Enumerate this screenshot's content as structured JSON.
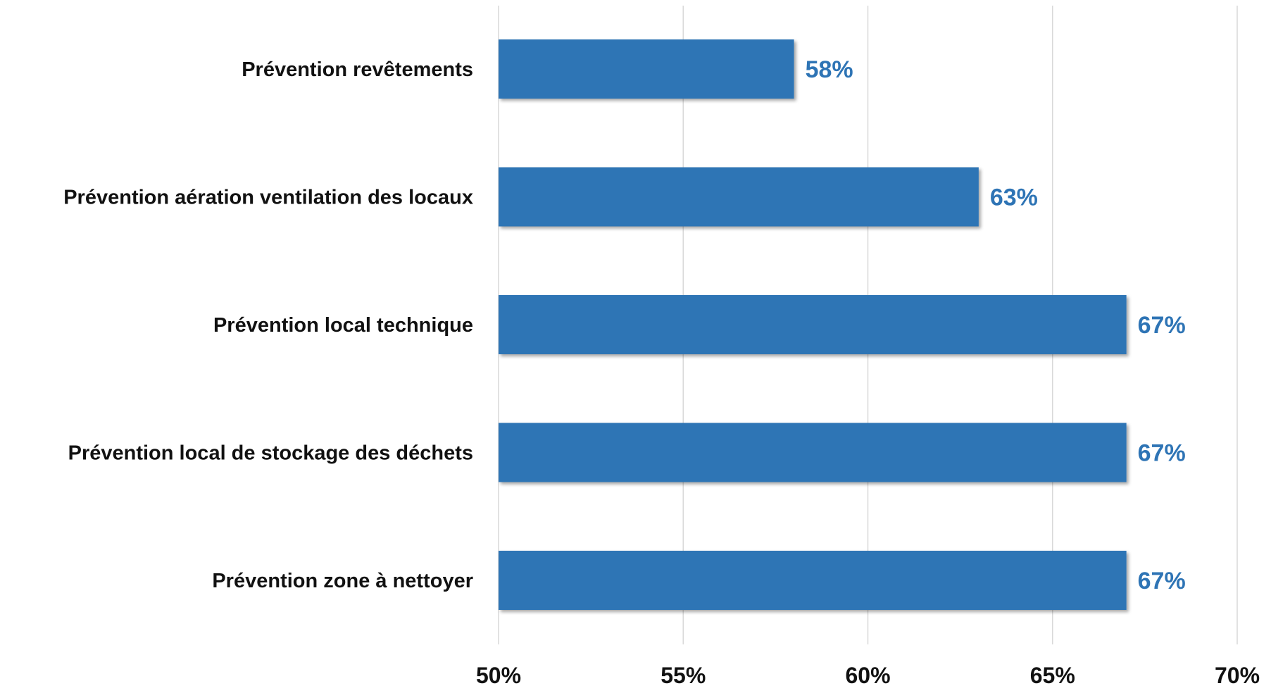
{
  "chart_data": {
    "type": "bar",
    "orientation": "horizontal",
    "categories": [
      "Prévention revêtements",
      "Prévention aération ventilation des locaux",
      "Prévention local technique",
      "Prévention local de stockage des déchets",
      "Prévention zone à nettoyer"
    ],
    "values": [
      58,
      63,
      67,
      67,
      67
    ],
    "value_labels": [
      "58%",
      "63%",
      "67%",
      "67%",
      "67%"
    ],
    "x_ticks": [
      50,
      55,
      60,
      65,
      70
    ],
    "x_tick_labels": [
      "50%",
      "55%",
      "60%",
      "65%",
      "70%"
    ],
    "xlim": [
      50,
      70
    ],
    "title": "",
    "xlabel": "",
    "ylabel": "",
    "grid": "vertical",
    "legend": "none",
    "colors": {
      "bar": "#2E74B5",
      "value_label": "#2E74B5",
      "grid": "#D9D9D9"
    }
  }
}
